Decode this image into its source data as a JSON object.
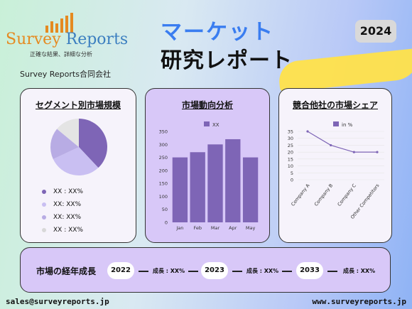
{
  "logo": {
    "title_part1": "Survey",
    "title_part2": "Reports",
    "subtitle": "正確な結果、詳細な分析"
  },
  "company": "Survey Reports合同会社",
  "header": {
    "title_line1": "マーケット",
    "title_line2": "研究レポート",
    "year": "2024"
  },
  "colors": {
    "accent_blue": "#3a7df0",
    "highlight_yellow": "#ffe14a",
    "purple_dark": "#7e65b6",
    "purple_light": "#d8c8f8"
  },
  "cards": {
    "segment": {
      "title": "セグメント別市場規模",
      "legend": [
        "XX : XX%",
        "XX: XX%",
        "XX: XX%",
        "XX : XX%"
      ]
    },
    "trend": {
      "title": "市場動向分析"
    },
    "share": {
      "title": "競合他社の市場シェア"
    }
  },
  "chart_data": [
    {
      "type": "pie",
      "slices": [
        {
          "label": "XX",
          "value": 38,
          "color": "#7e65b6"
        },
        {
          "label": "XX",
          "value": 30,
          "color": "#c9bff2"
        },
        {
          "label": "XX",
          "value": 18,
          "color": "#b8ace4"
        },
        {
          "label": "XX",
          "value": 14,
          "color": "#e4e4e4"
        }
      ]
    },
    {
      "type": "bar",
      "series_name": "XX",
      "categories": [
        "Jan",
        "Feb",
        "Mar",
        "Apr",
        "May"
      ],
      "values": [
        250,
        270,
        300,
        320,
        250
      ],
      "ylim": [
        0,
        350
      ],
      "yticks": [
        0,
        50,
        100,
        150,
        200,
        250,
        300,
        350
      ]
    },
    {
      "type": "line",
      "series_name": "in %",
      "categories": [
        "Company A",
        "Company B",
        "Company C",
        "Other Competitors"
      ],
      "values": [
        35,
        25,
        20,
        20
      ],
      "ylim": [
        0,
        35
      ],
      "yticks": [
        0,
        5,
        10,
        15,
        20,
        25,
        30,
        35
      ]
    }
  ],
  "growth": {
    "label": "市場の経年成長",
    "years": [
      "2022",
      "2023",
      "2033"
    ],
    "rates": [
      "成長 : XX%",
      "成長 : XX%",
      "成長 : XX%"
    ]
  },
  "footer": {
    "email": "sales@surveyreports.jp",
    "website": "www.surveyreports.jp"
  }
}
